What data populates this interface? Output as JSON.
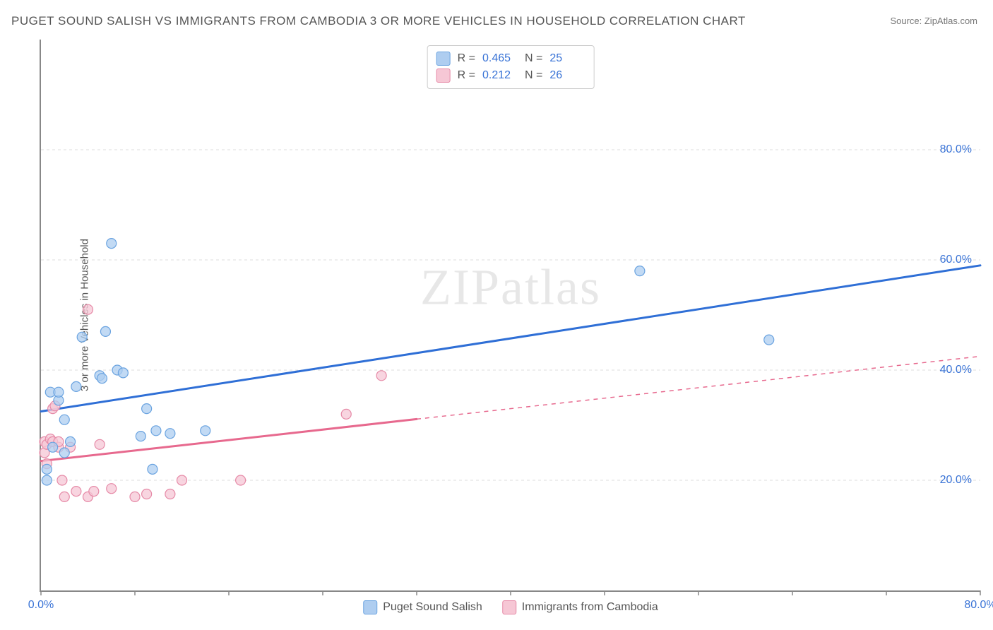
{
  "title": "PUGET SOUND SALISH VS IMMIGRANTS FROM CAMBODIA 3 OR MORE VEHICLES IN HOUSEHOLD CORRELATION CHART",
  "source": "Source: ZipAtlas.com",
  "ylabel": "3 or more Vehicles in Household",
  "watermark": "ZIPatlas",
  "chart": {
    "type": "scatter",
    "background_color": "#ffffff",
    "grid_color": "#dddddd",
    "grid_dash": "4,4",
    "xlim": [
      0,
      80
    ],
    "ylim": [
      0,
      100
    ],
    "ytick_labels": [
      {
        "value": 20,
        "label": "20.0%"
      },
      {
        "value": 40,
        "label": "40.0%"
      },
      {
        "value": 60,
        "label": "60.0%"
      },
      {
        "value": 80,
        "label": "80.0%"
      }
    ],
    "xtick_labels": [
      {
        "value": 0,
        "label": "0.0%"
      },
      {
        "value": 80,
        "label": "80.0%"
      }
    ],
    "xtick_marks": [
      0,
      8,
      16,
      24,
      32,
      40,
      48,
      56,
      64,
      72,
      80
    ],
    "marker_radius": 7,
    "marker_stroke_width": 1.2,
    "line_width": 3,
    "series": [
      {
        "name": "Puget Sound Salish",
        "color_fill": "#aecdf0",
        "color_stroke": "#6aa3e0",
        "line_color": "#2f6fd6",
        "r": "0.465",
        "n": "25",
        "points": [
          [
            0.5,
            20.0
          ],
          [
            0.5,
            22.0
          ],
          [
            0.8,
            36.0
          ],
          [
            1.0,
            26.0
          ],
          [
            1.5,
            34.5
          ],
          [
            1.5,
            36.0
          ],
          [
            2.0,
            31.0
          ],
          [
            2.5,
            27.0
          ],
          [
            3.0,
            37.0
          ],
          [
            3.5,
            46.0
          ],
          [
            5.0,
            39.0
          ],
          [
            5.2,
            38.5
          ],
          [
            5.5,
            47.0
          ],
          [
            6.0,
            63.0
          ],
          [
            6.5,
            40.0
          ],
          [
            7.0,
            39.5
          ],
          [
            8.5,
            28.0
          ],
          [
            9.0,
            33.0
          ],
          [
            9.5,
            22.0
          ],
          [
            9.8,
            29.0
          ],
          [
            11.0,
            28.5
          ],
          [
            14.0,
            29.0
          ],
          [
            51.0,
            58.0
          ],
          [
            62.0,
            45.5
          ],
          [
            2.0,
            25.0
          ]
        ],
        "trend": {
          "x1": 0,
          "y1": 32.5,
          "x2": 80,
          "y2": 59.0,
          "dash_from_x": null
        }
      },
      {
        "name": "Immigrants from Cambodia",
        "color_fill": "#f6c7d5",
        "color_stroke": "#e68aa7",
        "line_color": "#e7698e",
        "r": "0.212",
        "n": "26",
        "points": [
          [
            0.3,
            25.0
          ],
          [
            0.3,
            27.0
          ],
          [
            0.5,
            23.0
          ],
          [
            0.5,
            26.5
          ],
          [
            0.8,
            27.5
          ],
          [
            1.0,
            27.0
          ],
          [
            1.0,
            33.0
          ],
          [
            1.2,
            33.5
          ],
          [
            1.5,
            26.0
          ],
          [
            1.5,
            27.0
          ],
          [
            1.8,
            20.0
          ],
          [
            2.0,
            17.0
          ],
          [
            2.5,
            26.0
          ],
          [
            3.0,
            18.0
          ],
          [
            4.0,
            17.0
          ],
          [
            4.0,
            51.0
          ],
          [
            4.5,
            18.0
          ],
          [
            5.0,
            26.5
          ],
          [
            6.0,
            18.5
          ],
          [
            8.0,
            17.0
          ],
          [
            9.0,
            17.5
          ],
          [
            11.0,
            17.5
          ],
          [
            12.0,
            20.0
          ],
          [
            17.0,
            20.0
          ],
          [
            26.0,
            32.0
          ],
          [
            29.0,
            39.0
          ]
        ],
        "trend": {
          "x1": 0,
          "y1": 23.5,
          "x2": 80,
          "y2": 42.5,
          "dash_from_x": 32
        }
      }
    ]
  }
}
